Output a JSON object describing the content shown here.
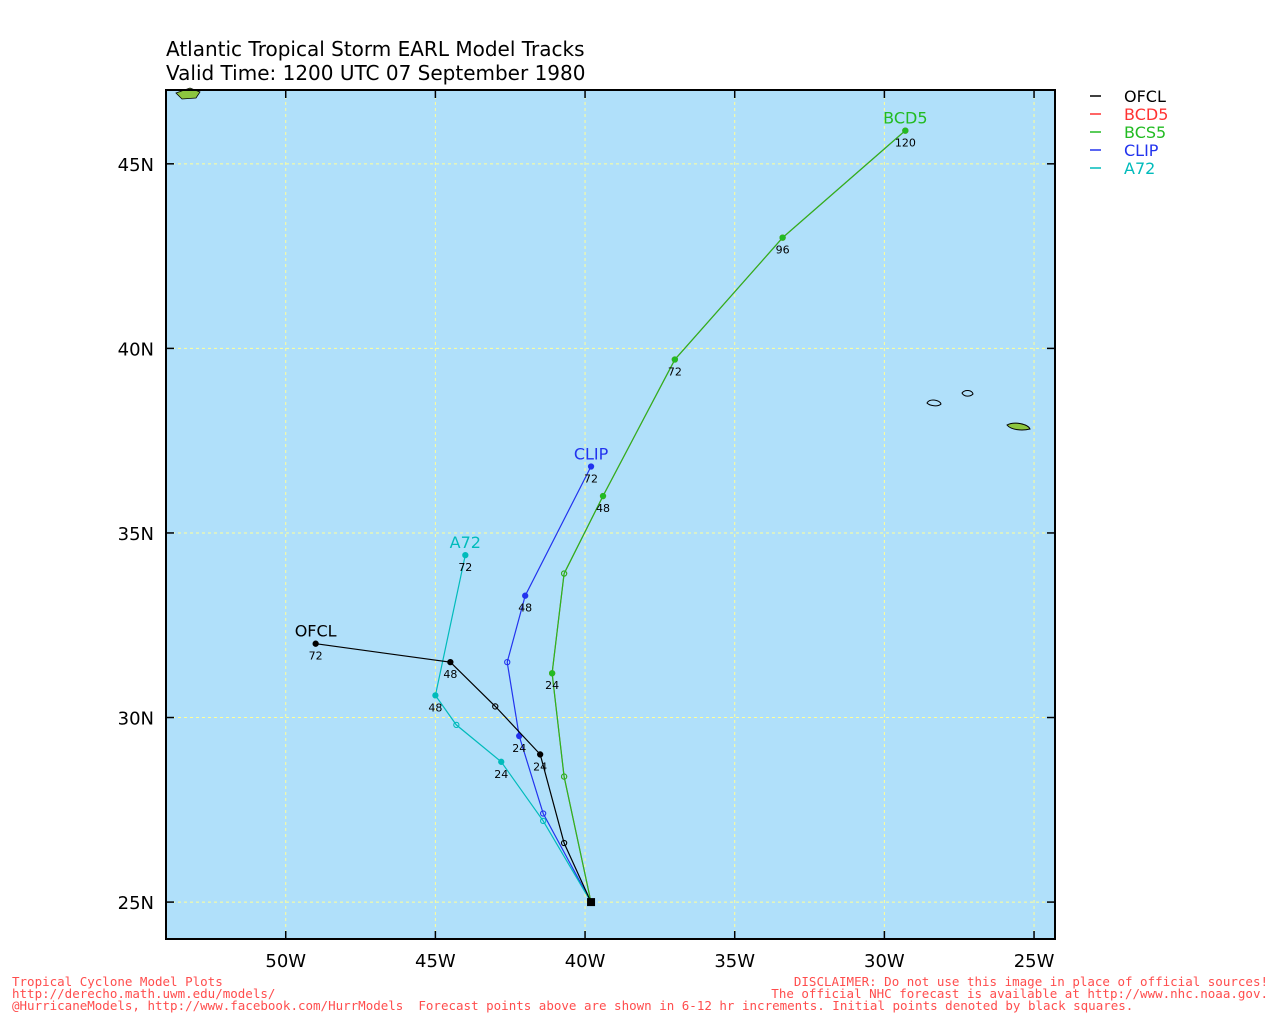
{
  "title": {
    "line1": "Atlantic Tropical Storm EARL Model Tracks",
    "line2": "Valid Time: 1200 UTC 07 September 1980"
  },
  "colors": {
    "ocean": "#b0e0fa",
    "land": "#8cc63f",
    "grid": "#ffff99",
    "frame": "#000000"
  },
  "map": {
    "lon_range": [
      -54,
      -24.3
    ],
    "lat_range": [
      24,
      47
    ],
    "x_ticks": [
      {
        "lon": -50,
        "label": "50W"
      },
      {
        "lon": -45,
        "label": "45W"
      },
      {
        "lon": -40,
        "label": "40W"
      },
      {
        "lon": -35,
        "label": "35W"
      },
      {
        "lon": -30,
        "label": "30W"
      },
      {
        "lon": -25,
        "label": "25W"
      }
    ],
    "y_ticks": [
      {
        "lat": 25,
        "label": "25N"
      },
      {
        "lat": 30,
        "label": "30N"
      },
      {
        "lat": 35,
        "label": "35N"
      },
      {
        "lat": 40,
        "label": "40N"
      },
      {
        "lat": 45,
        "label": "45N"
      }
    ],
    "grid": true,
    "initial_point": {
      "lon": -39.8,
      "lat": 25.0
    }
  },
  "legend": [
    {
      "name": "OFCL",
      "color": "#000000"
    },
    {
      "name": "BCD5",
      "color": "#ff3333"
    },
    {
      "name": "BCS5",
      "color": "#22bb22"
    },
    {
      "name": "CLIP",
      "color": "#2233ee"
    },
    {
      "name": "A72",
      "color": "#00bbbb"
    }
  ],
  "chart_data": {
    "type": "line",
    "x_unit": "longitude (negative = W)",
    "y_unit": "latitude (N)",
    "series": [
      {
        "name": "BCD5",
        "color": "#ff3333",
        "label": "",
        "points": [
          {
            "lon": -39.8,
            "lat": 25.0,
            "hr": 0
          },
          {
            "lon": -40.7,
            "lat": 28.4,
            "hr": 12
          },
          {
            "lon": -41.1,
            "lat": 31.2,
            "hr": 24
          },
          {
            "lon": -40.7,
            "lat": 33.9,
            "hr": 36
          },
          {
            "lon": -39.4,
            "lat": 36.0,
            "hr": 48
          },
          {
            "lon": -37.0,
            "lat": 39.7,
            "hr": 72
          },
          {
            "lon": -33.4,
            "lat": 43.0,
            "hr": 96
          },
          {
            "lon": -29.3,
            "lat": 45.9,
            "hr": 120
          }
        ]
      },
      {
        "name": "BCS5",
        "color": "#22bb22",
        "label": "BCD5",
        "points": [
          {
            "lon": -39.8,
            "lat": 25.0,
            "hr": 0
          },
          {
            "lon": -40.7,
            "lat": 28.4,
            "hr": 12
          },
          {
            "lon": -41.1,
            "lat": 31.2,
            "hr": 24,
            "tag": "24"
          },
          {
            "lon": -40.7,
            "lat": 33.9,
            "hr": 36
          },
          {
            "lon": -39.4,
            "lat": 36.0,
            "hr": 48,
            "tag": "48"
          },
          {
            "lon": -37.0,
            "lat": 39.7,
            "hr": 72,
            "tag": "72"
          },
          {
            "lon": -33.4,
            "lat": 43.0,
            "hr": 96,
            "tag": "96"
          },
          {
            "lon": -29.3,
            "lat": 45.9,
            "hr": 120,
            "tag": "120"
          }
        ]
      },
      {
        "name": "CLIP",
        "color": "#2233ee",
        "label": "CLIP",
        "points": [
          {
            "lon": -39.8,
            "lat": 25.0,
            "hr": 0
          },
          {
            "lon": -41.4,
            "lat": 27.4,
            "hr": 12
          },
          {
            "lon": -42.2,
            "lat": 29.5,
            "hr": 24,
            "tag": "24"
          },
          {
            "lon": -42.6,
            "lat": 31.5,
            "hr": 36
          },
          {
            "lon": -42.0,
            "lat": 33.3,
            "hr": 48,
            "tag": "48"
          },
          {
            "lon": -39.8,
            "lat": 36.8,
            "hr": 72,
            "tag": "72"
          }
        ]
      },
      {
        "name": "A72",
        "color": "#00bbbb",
        "label": "A72",
        "points": [
          {
            "lon": -39.8,
            "lat": 25.0,
            "hr": 0
          },
          {
            "lon": -41.4,
            "lat": 27.2,
            "hr": 12
          },
          {
            "lon": -42.8,
            "lat": 28.8,
            "hr": 24,
            "tag": "24"
          },
          {
            "lon": -44.3,
            "lat": 29.8,
            "hr": 36
          },
          {
            "lon": -45.0,
            "lat": 30.6,
            "hr": 48,
            "tag": "48"
          },
          {
            "lon": -44.0,
            "lat": 34.4,
            "hr": 72,
            "tag": "72"
          }
        ]
      },
      {
        "name": "OFCL",
        "color": "#000000",
        "label": "OFCL",
        "points": [
          {
            "lon": -39.8,
            "lat": 25.0,
            "hr": 0
          },
          {
            "lon": -40.7,
            "lat": 26.6,
            "hr": 12
          },
          {
            "lon": -41.5,
            "lat": 29.0,
            "hr": 24,
            "tag": "24"
          },
          {
            "lon": -43.0,
            "lat": 30.3,
            "hr": 36
          },
          {
            "lon": -44.5,
            "lat": 31.5,
            "hr": 48,
            "tag": "48"
          },
          {
            "lon": -49.0,
            "lat": 32.0,
            "hr": 72,
            "tag": "72"
          }
        ]
      }
    ]
  },
  "footer": {
    "left_line1": "Tropical Cyclone Model Plots",
    "left_line2": "http://derecho.math.uwm.edu/models/",
    "left_line3": "@HurricaneModels, http://www.facebook.com/HurrModels  Forecast points above are shown in 6-12 hr increments. Initial points denoted by black squares.",
    "right_line1": "DISCLAIMER: Do not use this image in place of official sources!",
    "right_line2": "The official NHC forecast is available at http://www.nhc.noaa.gov."
  }
}
